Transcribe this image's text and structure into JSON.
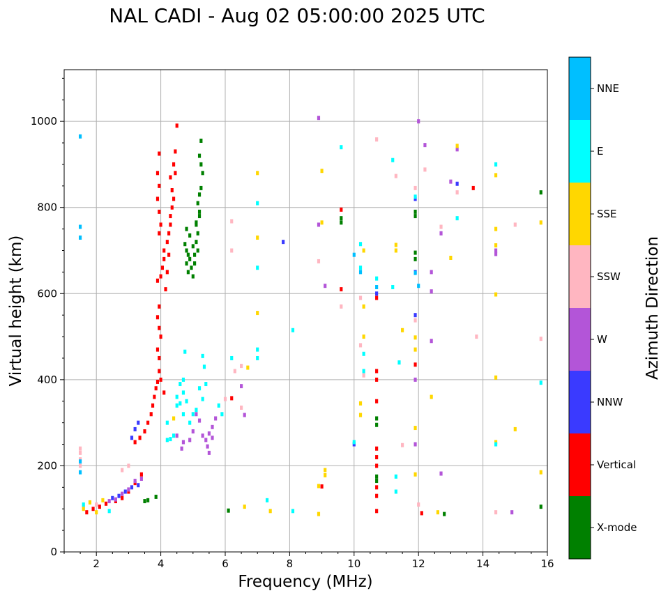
{
  "chart_data": {
    "type": "scatter",
    "title": "NAL CADI - Aug 02 05:00:00 2025 UTC",
    "xlabel": "Frequency (MHz)",
    "ylabel": "Virtual height (km)",
    "xlim": [
      1,
      16
    ],
    "ylim": [
      0,
      1120
    ],
    "grid": true,
    "xticks": [
      2,
      4,
      6,
      8,
      10,
      12,
      14,
      16
    ],
    "yticks": [
      0,
      200,
      400,
      600,
      800,
      1000
    ],
    "colorbar": {
      "label": "Azimuth Direction",
      "categories": [
        "X-mode",
        "Vertical",
        "NNW",
        "W",
        "SSW",
        "SSE",
        "E",
        "NNE"
      ],
      "colors": [
        "#008000",
        "#ff0000",
        "#3a3aff",
        "#b355d8",
        "#ffb6c1",
        "#ffd700",
        "#00ffff",
        "#00bfff"
      ]
    },
    "series": [
      {
        "name": "X-mode",
        "points": [
          [
            3.5,
            118
          ],
          [
            3.6,
            120
          ],
          [
            3.85,
            128
          ],
          [
            4.8,
            750
          ],
          [
            4.9,
            735
          ],
          [
            4.75,
            715
          ],
          [
            4.8,
            700
          ],
          [
            4.85,
            690
          ],
          [
            4.9,
            680
          ],
          [
            4.8,
            670
          ],
          [
            4.95,
            660
          ],
          [
            4.85,
            650
          ],
          [
            5.0,
            710
          ],
          [
            5.05,
            690
          ],
          [
            5.0,
            640
          ],
          [
            5.1,
            720
          ],
          [
            5.15,
            740
          ],
          [
            5.1,
            765
          ],
          [
            5.2,
            790
          ],
          [
            5.15,
            810
          ],
          [
            5.2,
            830
          ],
          [
            5.25,
            845
          ],
          [
            5.1,
            760
          ],
          [
            5.2,
            780
          ],
          [
            5.25,
            900
          ],
          [
            5.2,
            920
          ],
          [
            5.25,
            955
          ],
          [
            5.3,
            880
          ],
          [
            5.15,
            700
          ],
          [
            5.05,
            670
          ],
          [
            6.1,
            96
          ],
          [
            9.6,
            775
          ],
          [
            9.6,
            765
          ],
          [
            10.7,
            310
          ],
          [
            10.7,
            295
          ],
          [
            10.7,
            175
          ],
          [
            10.7,
            165
          ],
          [
            11.9,
            790
          ],
          [
            11.9,
            780
          ],
          [
            11.9,
            695
          ],
          [
            11.9,
            680
          ],
          [
            12.8,
            88
          ],
          [
            15.8,
            835
          ],
          [
            15.8,
            105
          ]
        ]
      },
      {
        "name": "Vertical",
        "points": [
          [
            1.7,
            92
          ],
          [
            1.9,
            100
          ],
          [
            2.1,
            105
          ],
          [
            2.3,
            112
          ],
          [
            2.6,
            118
          ],
          [
            2.8,
            125
          ],
          [
            3.0,
            140
          ],
          [
            3.2,
            160
          ],
          [
            3.4,
            180
          ],
          [
            3.2,
            255
          ],
          [
            3.35,
            265
          ],
          [
            3.5,
            280
          ],
          [
            3.6,
            300
          ],
          [
            3.7,
            320
          ],
          [
            3.75,
            340
          ],
          [
            3.8,
            360
          ],
          [
            3.85,
            380
          ],
          [
            3.9,
            395
          ],
          [
            3.95,
            420
          ],
          [
            3.95,
            450
          ],
          [
            3.9,
            470
          ],
          [
            4.0,
            500
          ],
          [
            3.95,
            520
          ],
          [
            3.9,
            545
          ],
          [
            3.95,
            570
          ],
          [
            4.0,
            400
          ],
          [
            4.1,
            370
          ],
          [
            3.9,
            630
          ],
          [
            4.0,
            640
          ],
          [
            4.05,
            660
          ],
          [
            4.1,
            680
          ],
          [
            4.1,
            700
          ],
          [
            4.2,
            720
          ],
          [
            4.25,
            740
          ],
          [
            4.3,
            760
          ],
          [
            4.3,
            780
          ],
          [
            4.35,
            800
          ],
          [
            4.4,
            820
          ],
          [
            4.35,
            840
          ],
          [
            4.3,
            870
          ],
          [
            4.45,
            880
          ],
          [
            4.4,
            900
          ],
          [
            4.45,
            930
          ],
          [
            4.5,
            990
          ],
          [
            4.15,
            610
          ],
          [
            3.95,
            925
          ],
          [
            3.9,
            880
          ],
          [
            3.95,
            850
          ],
          [
            3.9,
            820
          ],
          [
            3.95,
            790
          ],
          [
            4.0,
            760
          ],
          [
            3.95,
            740
          ],
          [
            4.2,
            650
          ],
          [
            4.25,
            690
          ],
          [
            6.2,
            357
          ],
          [
            9.0,
            152
          ],
          [
            9.6,
            795
          ],
          [
            9.6,
            610
          ],
          [
            10.7,
            95
          ],
          [
            10.7,
            130
          ],
          [
            10.7,
            150
          ],
          [
            10.7,
            200
          ],
          [
            10.7,
            220
          ],
          [
            10.7,
            240
          ],
          [
            10.7,
            350
          ],
          [
            10.7,
            400
          ],
          [
            10.7,
            420
          ],
          [
            10.7,
            590
          ],
          [
            12.1,
            90
          ],
          [
            13.7,
            845
          ],
          [
            11.9,
            435
          ]
        ]
      },
      {
        "name": "NNW",
        "points": [
          [
            2.5,
            125
          ],
          [
            2.7,
            130
          ],
          [
            2.9,
            140
          ],
          [
            3.1,
            150
          ],
          [
            3.3,
            155
          ],
          [
            3.1,
            265
          ],
          [
            3.2,
            285
          ],
          [
            3.3,
            300
          ],
          [
            10.0,
            250
          ],
          [
            10.7,
            600
          ],
          [
            11.9,
            820
          ],
          [
            11.9,
            650
          ],
          [
            11.9,
            550
          ],
          [
            13.2,
            855
          ],
          [
            7.8,
            720
          ]
        ]
      },
      {
        "name": "W",
        "points": [
          [
            2.4,
            118
          ],
          [
            2.6,
            122
          ],
          [
            2.8,
            135
          ],
          [
            3.0,
            145
          ],
          [
            3.2,
            165
          ],
          [
            3.4,
            170
          ],
          [
            5.4,
            260
          ],
          [
            5.5,
            275
          ],
          [
            5.6,
            265
          ],
          [
            5.45,
            245
          ],
          [
            5.5,
            230
          ],
          [
            5.3,
            270
          ],
          [
            5.6,
            290
          ],
          [
            5.7,
            310
          ],
          [
            5.2,
            305
          ],
          [
            5.1,
            320
          ],
          [
            5.0,
            280
          ],
          [
            4.9,
            260
          ],
          [
            4.7,
            255
          ],
          [
            4.5,
            270
          ],
          [
            4.65,
            240
          ],
          [
            6.5,
            385
          ],
          [
            6.6,
            318
          ],
          [
            8.9,
            1008
          ],
          [
            9.1,
            618
          ],
          [
            8.9,
            760
          ],
          [
            11.9,
            400
          ],
          [
            11.9,
            250
          ],
          [
            12.0,
            1000
          ],
          [
            12.2,
            945
          ],
          [
            12.4,
            650
          ],
          [
            12.4,
            605
          ],
          [
            12.4,
            490
          ],
          [
            12.7,
            740
          ],
          [
            12.7,
            182
          ],
          [
            13.0,
            860
          ],
          [
            13.2,
            935
          ],
          [
            14.4,
            700
          ],
          [
            14.4,
            692
          ],
          [
            14.9,
            92
          ]
        ]
      },
      {
        "name": "SSW",
        "points": [
          [
            1.5,
            240
          ],
          [
            1.5,
            230
          ],
          [
            1.5,
            215
          ],
          [
            1.5,
            200
          ],
          [
            1.6,
            105
          ],
          [
            2.0,
            110
          ],
          [
            2.8,
            190
          ],
          [
            3.0,
            200
          ],
          [
            6.2,
            768
          ],
          [
            6.2,
            700
          ],
          [
            6.3,
            420
          ],
          [
            6.5,
            432
          ],
          [
            6.5,
            335
          ],
          [
            6.0,
            355
          ],
          [
            8.9,
            675
          ],
          [
            9.6,
            570
          ],
          [
            10.2,
            590
          ],
          [
            10.2,
            480
          ],
          [
            10.3,
            410
          ],
          [
            10.7,
            958
          ],
          [
            11.3,
            873
          ],
          [
            11.5,
            248
          ],
          [
            11.9,
            845
          ],
          [
            11.9,
            538
          ],
          [
            12.2,
            888
          ],
          [
            12.0,
            110
          ],
          [
            12.7,
            755
          ],
          [
            13.2,
            835
          ],
          [
            13.8,
            500
          ],
          [
            14.4,
            92
          ],
          [
            15.0,
            760
          ],
          [
            15.8,
            495
          ]
        ]
      },
      {
        "name": "SSE",
        "points": [
          [
            1.6,
            100
          ],
          [
            1.8,
            115
          ],
          [
            2.0,
            92
          ],
          [
            2.2,
            120
          ],
          [
            4.4,
            310
          ],
          [
            6.6,
            105
          ],
          [
            6.7,
            428
          ],
          [
            7.0,
            880
          ],
          [
            7.0,
            730
          ],
          [
            7.0,
            555
          ],
          [
            7.4,
            95
          ],
          [
            8.9,
            88
          ],
          [
            8.9,
            153
          ],
          [
            9.0,
            885
          ],
          [
            9.0,
            765
          ],
          [
            9.1,
            178
          ],
          [
            9.1,
            190
          ],
          [
            10.2,
            345
          ],
          [
            10.2,
            318
          ],
          [
            10.3,
            500
          ],
          [
            10.3,
            570
          ],
          [
            10.3,
            700
          ],
          [
            11.3,
            713
          ],
          [
            11.3,
            700
          ],
          [
            11.5,
            515
          ],
          [
            11.9,
            288
          ],
          [
            11.9,
            498
          ],
          [
            11.9,
            470
          ],
          [
            11.9,
            180
          ],
          [
            12.4,
            360
          ],
          [
            12.6,
            92
          ],
          [
            13.0,
            683
          ],
          [
            13.2,
            943
          ],
          [
            14.4,
            875
          ],
          [
            14.4,
            750
          ],
          [
            14.4,
            712
          ],
          [
            14.4,
            598
          ],
          [
            14.4,
            405
          ],
          [
            14.4,
            255
          ],
          [
            15.0,
            285
          ],
          [
            15.8,
            765
          ],
          [
            15.8,
            185
          ]
        ]
      },
      {
        "name": "E",
        "points": [
          [
            1.6,
            110
          ],
          [
            2.4,
            95
          ],
          [
            4.2,
            260
          ],
          [
            4.3,
            262
          ],
          [
            4.2,
            300
          ],
          [
            4.4,
            270
          ],
          [
            4.5,
            340
          ],
          [
            4.5,
            360
          ],
          [
            4.6,
            345
          ],
          [
            4.7,
            370
          ],
          [
            4.8,
            350
          ],
          [
            4.7,
            320
          ],
          [
            4.9,
            300
          ],
          [
            5.0,
            320
          ],
          [
            5.1,
            330
          ],
          [
            4.6,
            390
          ],
          [
            4.7,
            400
          ],
          [
            4.75,
            465
          ],
          [
            5.2,
            380
          ],
          [
            5.3,
            355
          ],
          [
            5.4,
            390
          ],
          [
            5.35,
            430
          ],
          [
            5.3,
            455
          ],
          [
            5.8,
            340
          ],
          [
            5.9,
            320
          ],
          [
            6.2,
            450
          ],
          [
            7.0,
            810
          ],
          [
            7.0,
            660
          ],
          [
            7.0,
            470
          ],
          [
            7.0,
            450
          ],
          [
            7.3,
            120
          ],
          [
            8.1,
            95
          ],
          [
            8.1,
            515
          ],
          [
            9.6,
            940
          ],
          [
            10.0,
            255
          ],
          [
            10.2,
            715
          ],
          [
            10.2,
            660
          ],
          [
            10.3,
            460
          ],
          [
            10.3,
            420
          ],
          [
            10.7,
            635
          ],
          [
            11.2,
            615
          ],
          [
            11.2,
            910
          ],
          [
            11.3,
            175
          ],
          [
            11.3,
            140
          ],
          [
            11.4,
            440
          ],
          [
            11.9,
            825
          ],
          [
            13.2,
            775
          ],
          [
            14.4,
            900
          ],
          [
            14.4,
            250
          ],
          [
            15.8,
            393
          ]
        ]
      },
      {
        "name": "NNE",
        "points": [
          [
            1.5,
            965
          ],
          [
            1.5,
            755
          ],
          [
            1.5,
            730
          ],
          [
            1.5,
            210
          ],
          [
            1.5,
            185
          ],
          [
            10.0,
            690
          ],
          [
            10.2,
            650
          ],
          [
            10.7,
            615
          ],
          [
            11.9,
            648
          ],
          [
            12.0,
            618
          ]
        ]
      }
    ]
  }
}
